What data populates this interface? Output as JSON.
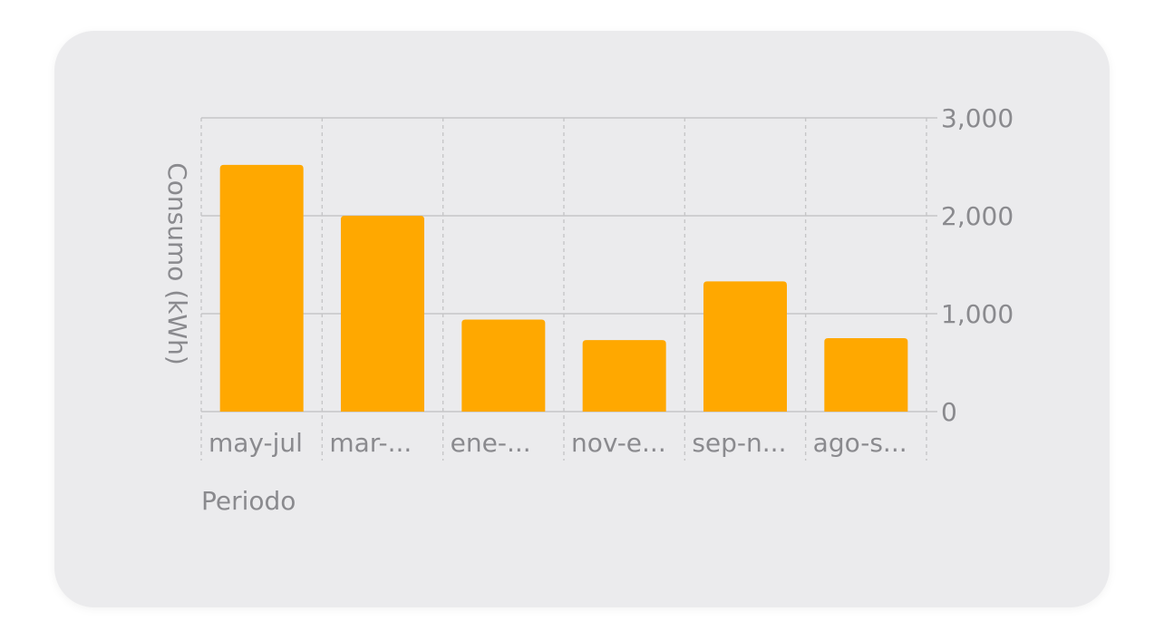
{
  "chart_data": {
    "type": "bar",
    "categories": [
      "may-jul",
      "mar-...",
      "ene-...",
      "nov-e...",
      "sep-n...",
      "ago-s..."
    ],
    "values": [
      2520,
      2000,
      940,
      730,
      1330,
      750
    ],
    "title": "",
    "xlabel": "Periodo",
    "ylabel": "Consumo (kWh)",
    "ylim": [
      0,
      3000
    ],
    "yticks": [
      0,
      1000,
      2000,
      3000
    ],
    "ytick_labels": [
      "0",
      "1,000",
      "2,000",
      "3,000"
    ],
    "yaxis_side": "right",
    "grid": true,
    "bar_color": "#ffa800",
    "grid_color": "#c6c6c8",
    "text_color": "#8a8a8e",
    "card_color": "#ebebed"
  }
}
